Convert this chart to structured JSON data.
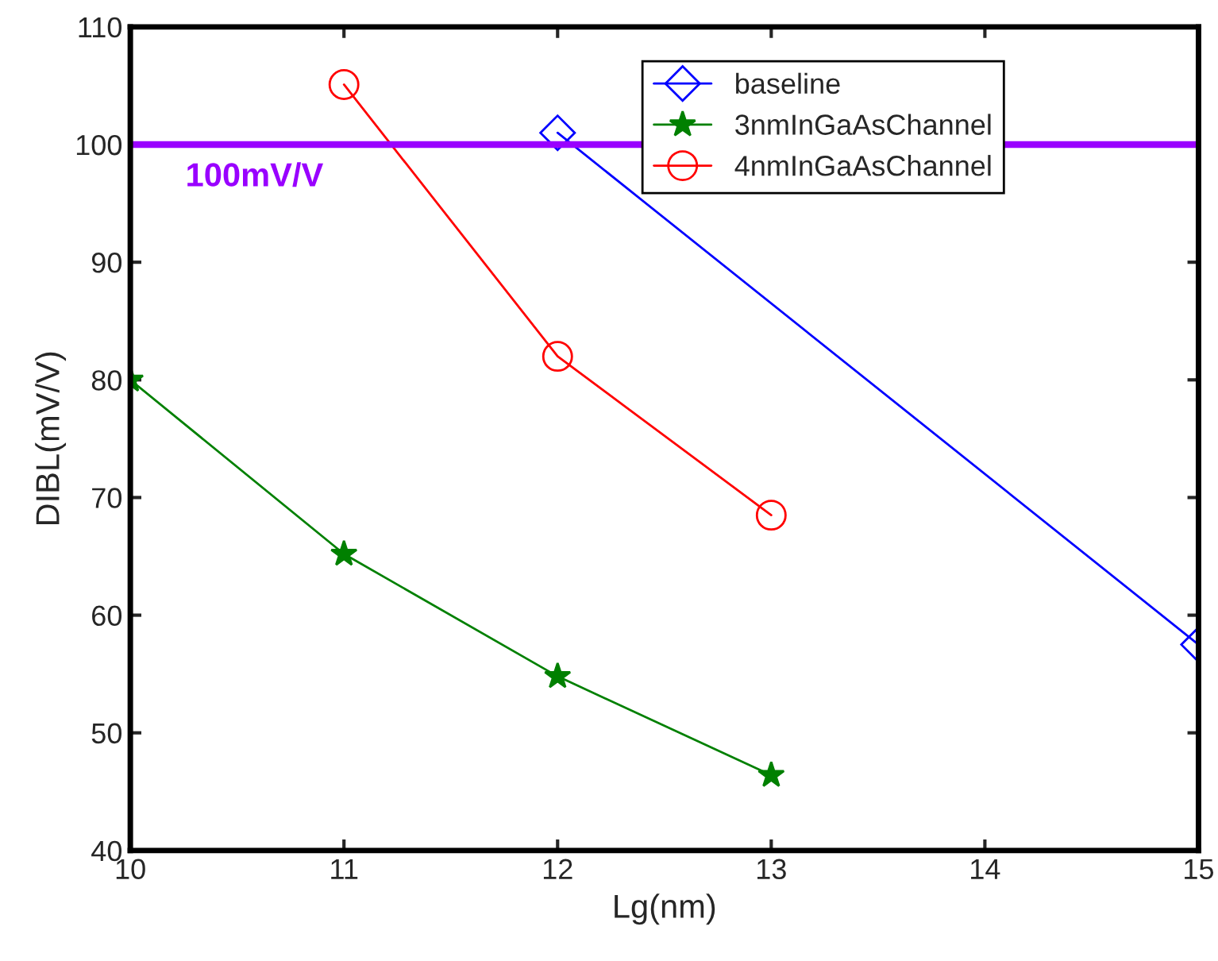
{
  "chart_data": {
    "type": "line",
    "xlabel": "Lg(nm)",
    "ylabel": "DIBL(mV/V)",
    "series": [
      {
        "name": "baseline",
        "color": "#0000ff",
        "x": [
          12,
          15
        ],
        "values": [
          101.0,
          57.5
        ],
        "marker": "diamond"
      },
      {
        "name": "3nmInGaAsChannel",
        "color": "#008000",
        "x": [
          10,
          11,
          12,
          13
        ],
        "values": [
          80.0,
          65.2,
          54.8,
          46.4
        ],
        "marker": "star"
      },
      {
        "name": "4nmInGaAsChannel",
        "color": "#ff0000",
        "x": [
          11,
          12,
          13
        ],
        "values": [
          105.1,
          82.0,
          68.5
        ],
        "marker": "circle"
      }
    ],
    "xlim": [
      10,
      15
    ],
    "xticks": [
      10,
      11,
      12,
      13,
      14,
      15
    ],
    "ylim": [
      40,
      110
    ],
    "yticks": [
      40,
      50,
      60,
      70,
      80,
      90,
      100,
      110
    ],
    "ref_lines": [
      {
        "axis": "y",
        "value": 100,
        "label": "100mV/V",
        "color": "#9900ff"
      }
    ],
    "grid": false,
    "legend": "top right",
    "line_style": "solid"
  }
}
